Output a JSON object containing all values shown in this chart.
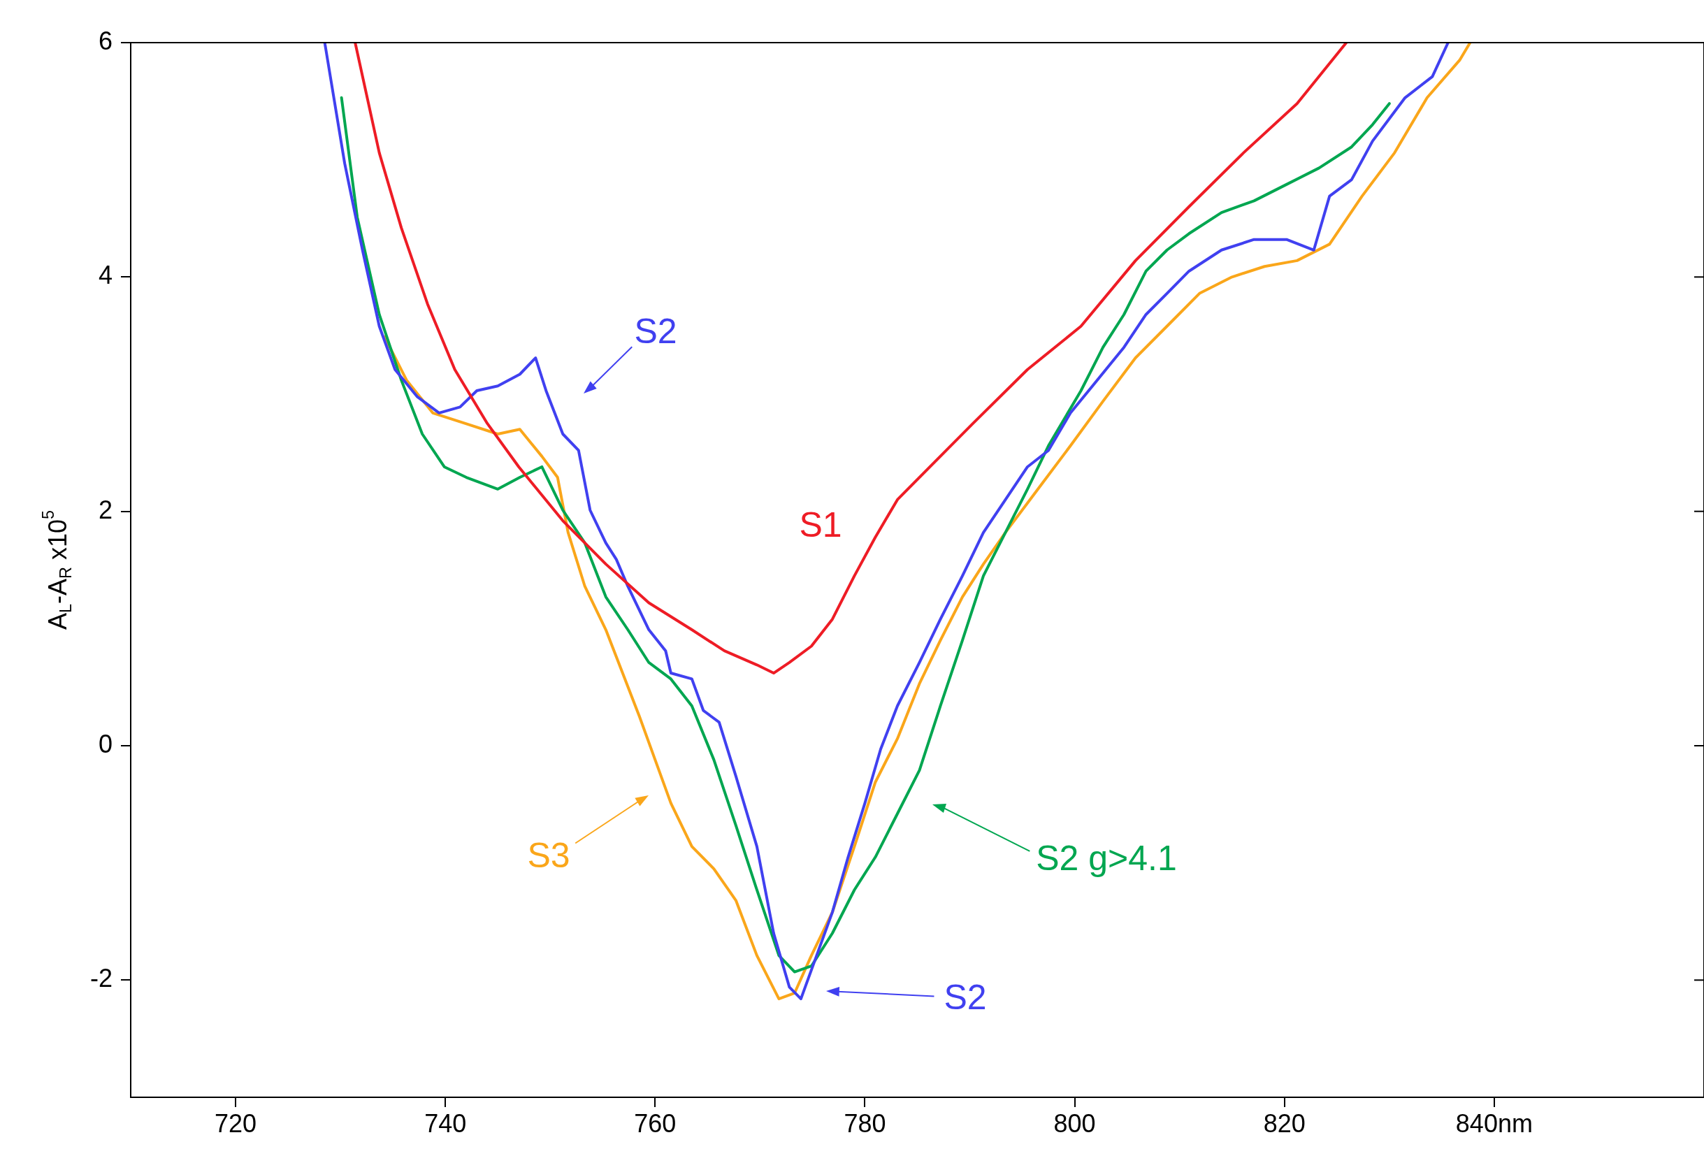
{
  "chart_data": {
    "type": "line",
    "ylabel": "A$_{L}$-A$_{R}$ x10$^{5}$",
    "xlim": [
      710,
      860
    ],
    "xticks": [
      720,
      740,
      760,
      780,
      800,
      820,
      {
        "value": 840,
        "label": "840nm"
      }
    ],
    "ylim": [
      -3,
      6
    ],
    "yticks": [
      -2,
      0,
      2,
      4,
      6
    ],
    "grid": false,
    "legend": false,
    "marker": "none",
    "line_style": "solid",
    "series": [
      {
        "color": "#ee1c25",
        "x": [
          731.4,
          733.7,
          735.8,
          738.3,
          740.9,
          744,
          747,
          751.2,
          755.3,
          759.4,
          763.5,
          766.6,
          769.7,
          771.3,
          772.8,
          774.9,
          776.9,
          779,
          781,
          783.1,
          786.2,
          790.3,
          795.5,
          800.6,
          805.8,
          810.9,
          816.1,
          821.2,
          825.9
        ],
        "values": [
          6,
          5.06,
          4.42,
          3.77,
          3.21,
          2.75,
          2.38,
          1.92,
          1.55,
          1.22,
          0.99,
          0.81,
          0.69,
          0.62,
          0.71,
          0.85,
          1.08,
          1.45,
          1.78,
          2.1,
          2.38,
          2.75,
          3.21,
          3.58,
          4.14,
          4.6,
          5.06,
          5.48,
          6
        ]
      },
      {
        "color": "#4040f0",
        "x": [
          728.5,
          730.4,
          732.1,
          733.7,
          735.2,
          737.3,
          739.4,
          741.4,
          743,
          745,
          747.1,
          748.6,
          749.6,
          751.2,
          752.7,
          753.8,
          755.3,
          756.3,
          757.4,
          759.4,
          761,
          761.5,
          763.5,
          764.6,
          766.1,
          767.7,
          769.7,
          771.3,
          772.8,
          773.9,
          775.4,
          776.9,
          778.4,
          780,
          781.5,
          783.1,
          785.2,
          787.2,
          789.3,
          791.3,
          793.4,
          795.5,
          797.5,
          799.6,
          801.7,
          804.7,
          806.8,
          808.8,
          810.9,
          814,
          817.1,
          820.2,
          822.8,
          824.3,
          826.4,
          828.4,
          831.5,
          834.1,
          835.6
        ],
        "values": [
          6,
          4.97,
          4.23,
          3.58,
          3.21,
          2.98,
          2.84,
          2.89,
          3.03,
          3.07,
          3.17,
          3.31,
          3.03,
          2.66,
          2.52,
          2.01,
          1.73,
          1.59,
          1.36,
          0.99,
          0.81,
          0.62,
          0.57,
          0.3,
          0.2,
          -0.26,
          -0.86,
          -1.6,
          -2.06,
          -2.16,
          -1.79,
          -1.42,
          -0.95,
          -0.49,
          -0.03,
          0.34,
          0.71,
          1.08,
          1.45,
          1.82,
          2.1,
          2.38,
          2.52,
          2.84,
          3.07,
          3.4,
          3.68,
          3.86,
          4.05,
          4.23,
          4.32,
          4.32,
          4.23,
          4.69,
          4.83,
          5.16,
          5.53,
          5.71,
          6
        ]
      },
      {
        "color": "#00a650",
        "x": [
          730.1,
          731.6,
          733.7,
          735.8,
          737.8,
          739.9,
          742,
          745,
          747.1,
          749.2,
          751.2,
          753.3,
          755.3,
          757.4,
          759.4,
          761.5,
          763.5,
          765.6,
          767.7,
          769.7,
          771.8,
          773.3,
          774.9,
          776.9,
          779,
          781,
          783.1,
          785.2,
          787.2,
          789.3,
          791.3,
          793.4,
          795.5,
          797.5,
          800.6,
          802.7,
          804.7,
          806.8,
          808.8,
          810.9,
          814,
          817.1,
          820.2,
          823.3,
          826.4,
          828.4,
          830
        ],
        "values": [
          5.53,
          4.51,
          3.68,
          3.12,
          2.66,
          2.38,
          2.29,
          2.19,
          2.29,
          2.38,
          2.01,
          1.73,
          1.27,
          0.99,
          0.71,
          0.57,
          0.34,
          -0.12,
          -0.68,
          -1.23,
          -1.79,
          -1.93,
          -1.88,
          -1.6,
          -1.23,
          -0.95,
          -0.58,
          -0.21,
          0.34,
          0.9,
          1.45,
          1.82,
          2.19,
          2.56,
          3.03,
          3.4,
          3.68,
          4.05,
          4.23,
          4.37,
          4.55,
          4.65,
          4.79,
          4.93,
          5.11,
          5.3,
          5.48
        ]
      },
      {
        "color": "#faa61a",
        "x": [
          734.2,
          736.3,
          738.8,
          741.9,
          745,
          747.1,
          749.2,
          750.7,
          751.7,
          753.3,
          755.3,
          756.9,
          758.5,
          760,
          761.5,
          763.5,
          765.6,
          767.7,
          769.7,
          771.8,
          773.3,
          774.9,
          776.9,
          779,
          781,
          783.1,
          785.2,
          787.2,
          789.3,
          791.3,
          793.4,
          796.5,
          799.6,
          802.7,
          805.8,
          808.8,
          811.9,
          815,
          818.1,
          821.2,
          824.3,
          827.4,
          830.5,
          833.6,
          836.7,
          837.7
        ],
        "values": [
          3.49,
          3.12,
          2.84,
          2.75,
          2.66,
          2.7,
          2.47,
          2.29,
          1.82,
          1.36,
          0.99,
          0.62,
          0.25,
          -0.12,
          -0.49,
          -0.86,
          -1.05,
          -1.32,
          -1.79,
          -2.16,
          -2.11,
          -1.79,
          -1.42,
          -0.86,
          -0.31,
          0.06,
          0.53,
          0.9,
          1.27,
          1.55,
          1.82,
          2.19,
          2.56,
          2.94,
          3.31,
          3.58,
          3.86,
          4,
          4.09,
          4.14,
          4.28,
          4.69,
          5.06,
          5.53,
          5.85,
          6
        ]
      }
    ],
    "annotations": [
      "S2",
      "S1",
      "S3",
      "S2 g>4.1",
      "S2"
    ]
  }
}
